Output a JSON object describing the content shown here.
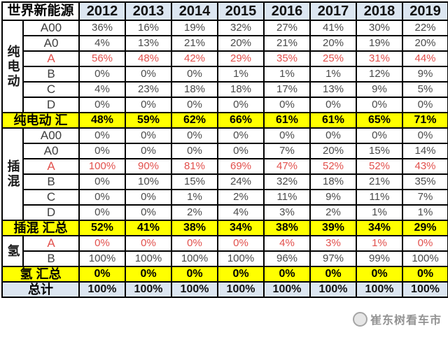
{
  "title": "世界新能源",
  "years": [
    "2012",
    "2013",
    "2014",
    "2015",
    "2016",
    "2017",
    "2018",
    "2019"
  ],
  "sections": [
    {
      "group": "纯电动",
      "rows": [
        {
          "label": "A00",
          "red": false,
          "values": [
            "36%",
            "16%",
            "19%",
            "32%",
            "27%",
            "41%",
            "30%",
            "22%"
          ]
        },
        {
          "label": "A0",
          "red": false,
          "values": [
            "4%",
            "13%",
            "21%",
            "20%",
            "21%",
            "20%",
            "19%",
            "20%"
          ]
        },
        {
          "label": "A",
          "red": true,
          "values": [
            "56%",
            "48%",
            "42%",
            "29%",
            "35%",
            "25%",
            "31%",
            "44%"
          ]
        },
        {
          "label": "B",
          "red": false,
          "values": [
            "0%",
            "0%",
            "0%",
            "1%",
            "1%",
            "1%",
            "12%",
            "9%"
          ]
        },
        {
          "label": "C",
          "red": false,
          "values": [
            "4%",
            "23%",
            "18%",
            "18%",
            "17%",
            "13%",
            "9%",
            "5%"
          ]
        },
        {
          "label": "D",
          "red": false,
          "values": [
            "0%",
            "0%",
            "0%",
            "0%",
            "0%",
            "0%",
            "0%",
            "0%"
          ]
        }
      ],
      "summary": {
        "label": "纯电动 汇",
        "values": [
          "48%",
          "59%",
          "62%",
          "66%",
          "61%",
          "61%",
          "65%",
          "71%"
        ]
      }
    },
    {
      "group": "插混",
      "rows": [
        {
          "label": "A00",
          "red": false,
          "values": [
            "0%",
            "0%",
            "0%",
            "0%",
            "0%",
            "0%",
            "0%",
            "0%"
          ]
        },
        {
          "label": "A0",
          "red": false,
          "values": [
            "0%",
            "0%",
            "0%",
            "0%",
            "7%",
            "20%",
            "15%",
            "14%"
          ]
        },
        {
          "label": "A",
          "red": true,
          "values": [
            "100%",
            "90%",
            "81%",
            "69%",
            "47%",
            "52%",
            "52%",
            "43%"
          ]
        },
        {
          "label": "B",
          "red": false,
          "values": [
            "0%",
            "10%",
            "15%",
            "24%",
            "32%",
            "18%",
            "21%",
            "35%"
          ]
        },
        {
          "label": "C",
          "red": false,
          "values": [
            "0%",
            "0%",
            "1%",
            "2%",
            "11%",
            "9%",
            "11%",
            "7%"
          ]
        },
        {
          "label": "D",
          "red": false,
          "values": [
            "0%",
            "0%",
            "2%",
            "4%",
            "3%",
            "2%",
            "1%",
            "1%"
          ]
        }
      ],
      "summary": {
        "label": "插混 汇总",
        "values": [
          "52%",
          "41%",
          "38%",
          "34%",
          "38%",
          "39%",
          "34%",
          "29%"
        ]
      }
    },
    {
      "group": "氢",
      "rows": [
        {
          "label": "A",
          "red": true,
          "values": [
            "0%",
            "0%",
            "0%",
            "0%",
            "4%",
            "3%",
            "1%",
            "0%"
          ]
        },
        {
          "label": "B",
          "red": false,
          "values": [
            "100%",
            "100%",
            "100%",
            "100%",
            "96%",
            "97%",
            "99%",
            "100%"
          ]
        }
      ],
      "summary": {
        "label": "氢 汇总",
        "values": [
          "0%",
          "0%",
          "0%",
          "0%",
          "0%",
          "0%",
          "0%",
          "0%"
        ]
      }
    }
  ],
  "total": {
    "label": "总计",
    "values": [
      "100%",
      "100%",
      "100%",
      "100%",
      "100%",
      "100%",
      "100%",
      "100%"
    ]
  },
  "watermark": {
    "text": "崔东树看车市"
  },
  "colors": {
    "header_bg": "#dce6f1",
    "summary_bg": "#ffff00",
    "total_bg": "#dce6f1",
    "red_text": "#e2504c",
    "border": "#000000"
  },
  "chart_data": {
    "type": "table",
    "title": "世界新能源",
    "columns": [
      "2012",
      "2013",
      "2014",
      "2015",
      "2016",
      "2017",
      "2018",
      "2019"
    ],
    "unit": "percent",
    "rows": [
      {
        "group": "纯电动",
        "class": "A00",
        "values": [
          36,
          16,
          19,
          32,
          27,
          41,
          30,
          22
        ]
      },
      {
        "group": "纯电动",
        "class": "A0",
        "values": [
          4,
          13,
          21,
          20,
          21,
          20,
          19,
          20
        ]
      },
      {
        "group": "纯电动",
        "class": "A",
        "values": [
          56,
          48,
          42,
          29,
          35,
          25,
          31,
          44
        ]
      },
      {
        "group": "纯电动",
        "class": "B",
        "values": [
          0,
          0,
          0,
          1,
          1,
          1,
          12,
          9
        ]
      },
      {
        "group": "纯电动",
        "class": "C",
        "values": [
          4,
          23,
          18,
          18,
          17,
          13,
          9,
          5
        ]
      },
      {
        "group": "纯电动",
        "class": "D",
        "values": [
          0,
          0,
          0,
          0,
          0,
          0,
          0,
          0
        ]
      },
      {
        "group": "纯电动",
        "class": "汇总",
        "values": [
          48,
          59,
          62,
          66,
          61,
          61,
          65,
          71
        ]
      },
      {
        "group": "插混",
        "class": "A00",
        "values": [
          0,
          0,
          0,
          0,
          0,
          0,
          0,
          0
        ]
      },
      {
        "group": "插混",
        "class": "A0",
        "values": [
          0,
          0,
          0,
          0,
          7,
          20,
          15,
          14
        ]
      },
      {
        "group": "插混",
        "class": "A",
        "values": [
          100,
          90,
          81,
          69,
          47,
          52,
          52,
          43
        ]
      },
      {
        "group": "插混",
        "class": "B",
        "values": [
          0,
          10,
          15,
          24,
          32,
          18,
          21,
          35
        ]
      },
      {
        "group": "插混",
        "class": "C",
        "values": [
          0,
          0,
          1,
          2,
          11,
          9,
          11,
          7
        ]
      },
      {
        "group": "插混",
        "class": "D",
        "values": [
          0,
          0,
          2,
          4,
          3,
          2,
          1,
          1
        ]
      },
      {
        "group": "插混",
        "class": "汇总",
        "values": [
          52,
          41,
          38,
          34,
          38,
          39,
          34,
          29
        ]
      },
      {
        "group": "氢",
        "class": "A",
        "values": [
          0,
          0,
          0,
          0,
          4,
          3,
          1,
          0
        ]
      },
      {
        "group": "氢",
        "class": "B",
        "values": [
          100,
          100,
          100,
          100,
          96,
          97,
          99,
          100
        ]
      },
      {
        "group": "氢",
        "class": "汇总",
        "values": [
          0,
          0,
          0,
          0,
          0,
          0,
          0,
          0
        ]
      },
      {
        "group": "总计",
        "class": "总计",
        "values": [
          100,
          100,
          100,
          100,
          100,
          100,
          100,
          100
        ]
      }
    ]
  }
}
